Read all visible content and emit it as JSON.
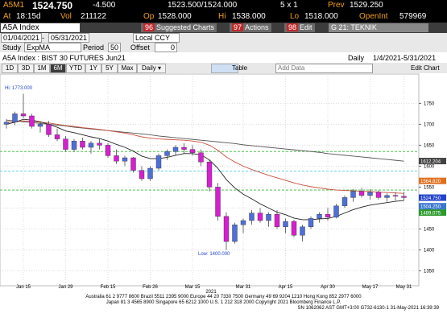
{
  "header": {
    "ticker": "A5M1",
    "last": "1524.750",
    "change": "-4.500",
    "bid_ask": "1523.500/1524.000",
    "size": "5 x 1",
    "prev_label": "Prev",
    "prev": "1529.250",
    "at_label": "At",
    "time": "18:15d",
    "vol_label": "Vol",
    "vol": "211122",
    "op_label": "Op",
    "op": "1528.000",
    "hi_label": "Hi",
    "hi": "1538.000",
    "lo_label": "Lo",
    "lo": "1518.000",
    "oi_label": "OpenInt",
    "oi": "579969"
  },
  "toolbar": {
    "security": "A5A Index",
    "b1_num": "96",
    "b1": "Suggested Charts",
    "b2_num": "97",
    "b2": "Actions",
    "b3_num": "98",
    "b3": "Edit",
    "template": "G 21: TEKNIK COZUMLEM..."
  },
  "controls": {
    "start": "01/04/2021",
    "dash": "-",
    "end": "05/31/2021",
    "currency": "Local CCY",
    "study_label": "Study",
    "study": "ExpMA",
    "period_label": "Period",
    "period": "50",
    "offset_label": "Offset",
    "offset": "0",
    "description": "A5A Index : BIST 30 FUTURES  Jun21",
    "freq": "Daily",
    "range": "1/4/2021-5/31/2021",
    "buttons": [
      "1D",
      "3D",
      "1M",
      "6M",
      "YTD",
      "1Y",
      "5Y",
      "Max",
      "Daily ▾"
    ],
    "table": "Table",
    "add_data": "Add Data",
    "edit_chart": "Edit Chart"
  },
  "chart_data": {
    "type": "candlestick",
    "up_color": "#4f6fd8",
    "down_color": "#d61fcf",
    "categories": [
      null,
      null,
      "Jan 15",
      null,
      null,
      null,
      null,
      "Jan 29",
      null,
      null,
      null,
      null,
      "Feb 15",
      null,
      null,
      null,
      null,
      "Feb 26",
      null,
      null,
      null,
      null,
      "Mar 15",
      null,
      null,
      null,
      null,
      null,
      "Mar 31",
      null,
      null,
      null,
      null,
      "Apr 15",
      null,
      null,
      null,
      null,
      "Apr 30",
      null,
      null,
      null,
      null,
      "May 17",
      null,
      null,
      null,
      "May 31"
    ],
    "year_label": "2021",
    "open": [
      1700,
      1705,
      1725,
      1720,
      1695,
      1700,
      1675,
      1665,
      1640,
      1660,
      1645,
      1655,
      1650,
      1625,
      1612,
      1620,
      1590,
      1570,
      1595,
      1625,
      1635,
      1645,
      1640,
      1632,
      1610,
      1550,
      1480,
      1420,
      1460,
      1470,
      1488,
      1470,
      1485,
      1455,
      1468,
      1435,
      1455,
      1475,
      1485,
      1478,
      1505,
      1525,
      1540,
      1530,
      1538,
      1525,
      1530,
      1528
    ],
    "high": [
      1712,
      1730,
      1773,
      1725,
      1705,
      1708,
      1690,
      1672,
      1665,
      1668,
      1660,
      1665,
      1655,
      1640,
      1625,
      1622,
      1600,
      1600,
      1630,
      1640,
      1650,
      1655,
      1650,
      1640,
      1615,
      1560,
      1490,
      1465,
      1475,
      1495,
      1500,
      1490,
      1495,
      1475,
      1472,
      1460,
      1480,
      1490,
      1500,
      1510,
      1530,
      1545,
      1548,
      1545,
      1542,
      1535,
      1538,
      1538
    ],
    "low": [
      1690,
      1698,
      1715,
      1690,
      1680,
      1670,
      1660,
      1635,
      1635,
      1640,
      1630,
      1640,
      1620,
      1605,
      1600,
      1585,
      1565,
      1565,
      1590,
      1615,
      1625,
      1630,
      1625,
      1600,
      1540,
      1470,
      1400,
      1415,
      1440,
      1460,
      1465,
      1455,
      1450,
      1440,
      1430,
      1420,
      1450,
      1465,
      1470,
      1475,
      1500,
      1515,
      1525,
      1520,
      1520,
      1515,
      1518,
      1518
    ],
    "close": [
      1705,
      1725,
      1720,
      1695,
      1700,
      1675,
      1665,
      1640,
      1660,
      1645,
      1655,
      1650,
      1625,
      1612,
      1620,
      1590,
      1570,
      1595,
      1625,
      1635,
      1645,
      1640,
      1632,
      1610,
      1550,
      1480,
      1420,
      1460,
      1470,
      1488,
      1470,
      1485,
      1455,
      1468,
      1435,
      1455,
      1475,
      1485,
      1478,
      1505,
      1525,
      1540,
      1530,
      1538,
      1525,
      1530,
      1529,
      1525
    ],
    "series": [
      {
        "color": "#555555",
        "values": [
          1710,
          1708,
          1706,
          1704,
          1702,
          1700,
          1698,
          1696,
          1693,
          1691,
          1689,
          1687,
          1685,
          1683,
          1681,
          1679,
          1677,
          1675,
          1672,
          1670,
          1668,
          1666,
          1664,
          1662,
          1660,
          1658,
          1656,
          1654,
          1651,
          1649,
          1647,
          1645,
          1643,
          1641,
          1639,
          1637,
          1635,
          1633,
          1630,
          1628,
          1626,
          1624,
          1622,
          1620,
          1618,
          1616,
          1614,
          1612
        ]
      },
      {
        "color": "#c8503c",
        "values": [
          1705,
          1706,
          1708,
          1707,
          1705,
          1703,
          1700,
          1697,
          1695,
          1692,
          1690,
          1688,
          1685,
          1682,
          1679,
          1675,
          1670,
          1667,
          1665,
          1664,
          1663,
          1662,
          1660,
          1657,
          1650,
          1638,
          1622,
          1610,
          1600,
          1592,
          1585,
          1578,
          1572,
          1566,
          1560,
          1555,
          1551,
          1548,
          1545,
          1543,
          1542,
          1541,
          1540,
          1539,
          1538,
          1537,
          1536,
          1535
        ]
      },
      {
        "color": "#222222",
        "values": [
          1700,
          1705,
          1712,
          1710,
          1706,
          1700,
          1693,
          1684,
          1680,
          1675,
          1670,
          1666,
          1660,
          1652,
          1645,
          1636,
          1624,
          1618,
          1618,
          1621,
          1626,
          1630,
          1630,
          1627,
          1615,
          1595,
          1568,
          1548,
          1533,
          1522,
          1510,
          1500,
          1490,
          1484,
          1476,
          1472,
          1472,
          1474,
          1475,
          1480,
          1488,
          1496,
          1502,
          1507,
          1510,
          1513,
          1516,
          1518
        ]
      }
    ],
    "hlines": [
      {
        "value": 1635,
        "color": "#33b833"
      },
      {
        "value": 1588,
        "color": "#33c8d8"
      },
      {
        "value": 1543,
        "color": "#33b833"
      }
    ],
    "price_labels": [
      {
        "value": 1612.204,
        "color": "#444444"
      },
      {
        "value": 1564.82,
        "label": "1564.820",
        "color": "#e07020"
      },
      {
        "value": 1524.75,
        "label": "1524.750",
        "color": "#2244cc"
      },
      {
        "value": 1504.25,
        "label": "1504.250",
        "color": "#3a78d0"
      },
      {
        "value": 1489.075,
        "color": "#2e9a2e"
      }
    ],
    "hi_note": "Hi: 1773.000",
    "low_note": "Low: 1400.000",
    "ylim": [
      1320,
      1820
    ],
    "yticks": [
      1350,
      1400,
      1450,
      1500,
      1550,
      1600,
      1650,
      1700,
      1750
    ],
    "grid": true
  },
  "footer": {
    "line1": "Australia 61 2 9777 8600 Brazil 5511 2395 9000 Europe 44 20 7330 7500 Germany 49 69 9204 1210 Hong Kong 852 2977 6000",
    "line2": "Japan 81 3 4565 8900       Singapore 65 6212 1000       U.S. 1 212 318 2000       Copyright 2021 Bloomberg Finance L.P.",
    "line3": "SN 1062062 AST  GMT+3:00 G732-6130-1 31-May-2021 16:39:39"
  }
}
